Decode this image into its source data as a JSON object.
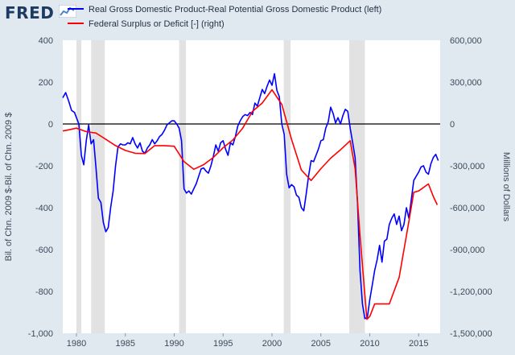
{
  "header": {
    "logo_text": "FRED",
    "logo_icon": "line-chart-icon"
  },
  "colors": {
    "background": "#e1e9f0",
    "plot_background": "#ffffff",
    "recession": "#e2e2e2",
    "series_left": "#0000ff",
    "series_right": "#ff0000"
  },
  "chart_data": {
    "type": "line",
    "x_ticks": [
      "1980",
      "1985",
      "1990",
      "1995",
      "2000",
      "2005",
      "2010",
      "2015"
    ],
    "xlim": [
      1978.6,
      2017.2
    ],
    "left_axis": {
      "label": "Bil. of Chn. 2009 $-Bil. of Chn. 2009 $",
      "range": [
        -1000,
        400
      ],
      "ticks": [
        "400",
        "200",
        "0",
        "-200",
        "-400",
        "-600",
        "-800",
        "-1,000"
      ],
      "tick_values": [
        400,
        200,
        0,
        -200,
        -400,
        -600,
        -800,
        -1000
      ]
    },
    "right_axis": {
      "label": "Millions of Dollars",
      "range": [
        -1500000,
        600000
      ],
      "ticks": [
        "600,000",
        "300,000",
        "0",
        "-300,000",
        "-600,000",
        "-900,000",
        "-1,200,000",
        "-1,500,000"
      ],
      "tick_values": [
        600000,
        300000,
        0,
        -300000,
        -600000,
        -900000,
        -1200000,
        -1500000
      ]
    },
    "recessions": [
      [
        1980.0,
        1980.5
      ],
      [
        1981.5,
        1982.9
      ],
      [
        1990.5,
        1991.2
      ],
      [
        2001.2,
        2001.9
      ],
      [
        2007.9,
        2009.5
      ]
    ],
    "zero_line": true,
    "series": [
      {
        "name": "Real Gross Domestic Product-Real Potential Gross Domestic Product (left)",
        "axis": "left",
        "color": "#0000ff",
        "points": [
          [
            1978.6,
            125
          ],
          [
            1978.9,
            150
          ],
          [
            1979.2,
            110
          ],
          [
            1979.5,
            65
          ],
          [
            1979.8,
            55
          ],
          [
            1980.0,
            30
          ],
          [
            1980.25,
            0
          ],
          [
            1980.5,
            -150
          ],
          [
            1980.75,
            -195
          ],
          [
            1981.0,
            -80
          ],
          [
            1981.25,
            -5
          ],
          [
            1981.5,
            -95
          ],
          [
            1981.75,
            -75
          ],
          [
            1982.0,
            -210
          ],
          [
            1982.25,
            -355
          ],
          [
            1982.5,
            -375
          ],
          [
            1982.75,
            -470
          ],
          [
            1983.0,
            -515
          ],
          [
            1983.25,
            -495
          ],
          [
            1983.5,
            -400
          ],
          [
            1983.75,
            -320
          ],
          [
            1984.0,
            -200
          ],
          [
            1984.25,
            -110
          ],
          [
            1984.5,
            -95
          ],
          [
            1984.75,
            -100
          ],
          [
            1985.0,
            -100
          ],
          [
            1985.25,
            -90
          ],
          [
            1985.5,
            -95
          ],
          [
            1985.75,
            -65
          ],
          [
            1986.0,
            -95
          ],
          [
            1986.25,
            -115
          ],
          [
            1986.5,
            -90
          ],
          [
            1986.75,
            -130
          ],
          [
            1987.0,
            -140
          ],
          [
            1987.25,
            -115
          ],
          [
            1987.5,
            -100
          ],
          [
            1987.75,
            -75
          ],
          [
            1988.0,
            -95
          ],
          [
            1988.25,
            -80
          ],
          [
            1988.5,
            -60
          ],
          [
            1988.75,
            -50
          ],
          [
            1989.0,
            -30
          ],
          [
            1989.25,
            -5
          ],
          [
            1989.5,
            5
          ],
          [
            1989.75,
            15
          ],
          [
            1990.0,
            15
          ],
          [
            1990.25,
            0
          ],
          [
            1990.5,
            -20
          ],
          [
            1990.75,
            -80
          ],
          [
            1991.0,
            -310
          ],
          [
            1991.25,
            -330
          ],
          [
            1991.5,
            -320
          ],
          [
            1991.75,
            -335
          ],
          [
            1992.0,
            -310
          ],
          [
            1992.25,
            -285
          ],
          [
            1992.5,
            -250
          ],
          [
            1992.75,
            -215
          ],
          [
            1993.0,
            -210
          ],
          [
            1993.25,
            -225
          ],
          [
            1993.5,
            -235
          ],
          [
            1993.75,
            -200
          ],
          [
            1994.0,
            -155
          ],
          [
            1994.25,
            -100
          ],
          [
            1994.5,
            -130
          ],
          [
            1994.75,
            -90
          ],
          [
            1995.0,
            -80
          ],
          [
            1995.25,
            -120
          ],
          [
            1995.5,
            -150
          ],
          [
            1995.75,
            -90
          ],
          [
            1996.0,
            -100
          ],
          [
            1996.25,
            -60
          ],
          [
            1996.5,
            -10
          ],
          [
            1996.75,
            15
          ],
          [
            1997.0,
            35
          ],
          [
            1997.25,
            45
          ],
          [
            1997.5,
            40
          ],
          [
            1997.75,
            55
          ],
          [
            1998.0,
            45
          ],
          [
            1998.25,
            100
          ],
          [
            1998.5,
            85
          ],
          [
            1998.75,
            125
          ],
          [
            1999.0,
            165
          ],
          [
            1999.25,
            145
          ],
          [
            1999.5,
            180
          ],
          [
            1999.75,
            210
          ],
          [
            2000.0,
            185
          ],
          [
            2000.25,
            240
          ],
          [
            2000.5,
            160
          ],
          [
            2000.75,
            130
          ],
          [
            2001.0,
            0
          ],
          [
            2001.25,
            -50
          ],
          [
            2001.5,
            -240
          ],
          [
            2001.75,
            -305
          ],
          [
            2002.0,
            -290
          ],
          [
            2002.25,
            -300
          ],
          [
            2002.5,
            -340
          ],
          [
            2002.75,
            -350
          ],
          [
            2003.0,
            -400
          ],
          [
            2003.25,
            -415
          ],
          [
            2003.5,
            -335
          ],
          [
            2003.75,
            -245
          ],
          [
            2004.0,
            -175
          ],
          [
            2004.25,
            -180
          ],
          [
            2004.5,
            -150
          ],
          [
            2004.75,
            -120
          ],
          [
            2005.0,
            -80
          ],
          [
            2005.25,
            -75
          ],
          [
            2005.5,
            -20
          ],
          [
            2005.75,
            10
          ],
          [
            2006.0,
            80
          ],
          [
            2006.25,
            50
          ],
          [
            2006.5,
            5
          ],
          [
            2006.75,
            30
          ],
          [
            2007.0,
            0
          ],
          [
            2007.25,
            40
          ],
          [
            2007.5,
            70
          ],
          [
            2007.75,
            60
          ],
          [
            2008.0,
            -20
          ],
          [
            2008.25,
            -90
          ],
          [
            2008.5,
            -160
          ],
          [
            2008.75,
            -380
          ],
          [
            2009.0,
            -700
          ],
          [
            2009.25,
            -860
          ],
          [
            2009.5,
            -930
          ],
          [
            2009.75,
            -925
          ],
          [
            2010.0,
            -840
          ],
          [
            2010.25,
            -770
          ],
          [
            2010.5,
            -700
          ],
          [
            2010.75,
            -650
          ],
          [
            2011.0,
            -580
          ],
          [
            2011.25,
            -660
          ],
          [
            2011.5,
            -560
          ],
          [
            2011.75,
            -550
          ],
          [
            2012.0,
            -480
          ],
          [
            2012.25,
            -450
          ],
          [
            2012.5,
            -430
          ],
          [
            2012.75,
            -480
          ],
          [
            2013.0,
            -440
          ],
          [
            2013.25,
            -510
          ],
          [
            2013.5,
            -480
          ],
          [
            2013.75,
            -400
          ],
          [
            2014.0,
            -450
          ],
          [
            2014.25,
            -360
          ],
          [
            2014.5,
            -270
          ],
          [
            2014.75,
            -250
          ],
          [
            2015.0,
            -230
          ],
          [
            2015.25,
            -205
          ],
          [
            2015.5,
            -200
          ],
          [
            2015.75,
            -230
          ],
          [
            2016.0,
            -240
          ],
          [
            2016.25,
            -190
          ],
          [
            2016.5,
            -160
          ],
          [
            2016.75,
            -145
          ],
          [
            2017.0,
            -175
          ]
        ]
      },
      {
        "name": "Federal Surplus or Deficit [-] (right)",
        "axis": "right",
        "color": "#ff0000",
        "points": [
          [
            1978.6,
            -50000
          ],
          [
            1979,
            -45000
          ],
          [
            1980,
            -30000
          ],
          [
            1981,
            -55000
          ],
          [
            1982,
            -65000
          ],
          [
            1983,
            -110000
          ],
          [
            1984,
            -155000
          ],
          [
            1985,
            -190000
          ],
          [
            1986,
            -210000
          ],
          [
            1987,
            -212000
          ],
          [
            1988,
            -155000
          ],
          [
            1989,
            -155000
          ],
          [
            1990,
            -160000
          ],
          [
            1991,
            -270000
          ],
          [
            1992,
            -325000
          ],
          [
            1993,
            -292000
          ],
          [
            1994,
            -240000
          ],
          [
            1995,
            -170000
          ],
          [
            1996,
            -115000
          ],
          [
            1997,
            -30000
          ],
          [
            1998,
            90000
          ],
          [
            1999,
            150000
          ],
          [
            2000,
            245000
          ],
          [
            2001,
            140000
          ],
          [
            2002,
            -110000
          ],
          [
            2003,
            -330000
          ],
          [
            2004,
            -405000
          ],
          [
            2005,
            -320000
          ],
          [
            2006,
            -245000
          ],
          [
            2007,
            -185000
          ],
          [
            2008,
            -120000
          ],
          [
            2008.5,
            -320000
          ],
          [
            2009,
            -800000
          ],
          [
            2009.7,
            -1400000
          ],
          [
            2010,
            -1380000
          ],
          [
            2010.5,
            -1290000
          ],
          [
            2011,
            -1290000
          ],
          [
            2012,
            -1290000
          ],
          [
            2013,
            -1100000
          ],
          [
            2014,
            -700000
          ],
          [
            2014.5,
            -490000
          ],
          [
            2015,
            -480000
          ],
          [
            2016,
            -430000
          ],
          [
            2016.5,
            -520000
          ],
          [
            2016.9,
            -580000
          ]
        ]
      }
    ]
  }
}
